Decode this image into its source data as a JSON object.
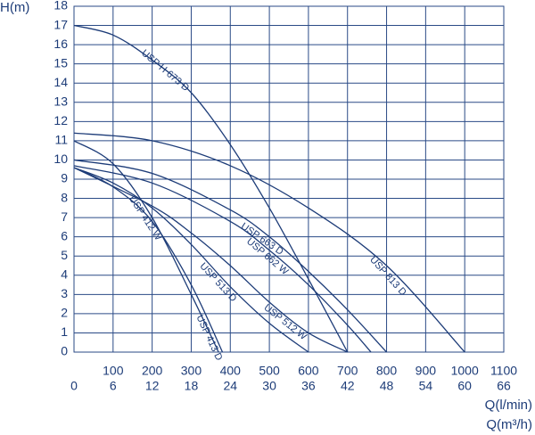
{
  "chart_data": {
    "type": "line",
    "y_label": "H(m)",
    "x_label": "Q(l/min)",
    "x2_label": "Q(m³/h)",
    "xlim": [
      0,
      1100
    ],
    "xticks": [
      100,
      200,
      300,
      400,
      500,
      600,
      700,
      800,
      900,
      1000,
      1100
    ],
    "x2lim": [
      0,
      66
    ],
    "x2ticks": [
      0,
      6,
      12,
      18,
      24,
      30,
      36,
      42,
      48,
      54,
      60,
      66
    ],
    "ylim": [
      0,
      18
    ],
    "yticks": [
      0,
      1,
      2,
      3,
      4,
      5,
      6,
      7,
      8,
      9,
      10,
      11,
      12,
      13,
      14,
      15,
      16,
      17,
      18
    ],
    "grid": true,
    "series": [
      {
        "name": "USP H 673 D",
        "color": "#1d3c78",
        "x": [
          0,
          100,
          200,
          300,
          400,
          500,
          600,
          700
        ],
        "values": [
          17,
          16.5,
          15.2,
          13.5,
          10.8,
          7.5,
          3.8,
          0
        ]
      },
      {
        "name": "USP 813 D",
        "color": "#1d3c78",
        "x": [
          0,
          200,
          400,
          600,
          800,
          1000
        ],
        "values": [
          11.4,
          11,
          9.7,
          7.5,
          4.5,
          0
        ]
      },
      {
        "name": "USP 663 D",
        "color": "#1d3c78",
        "x": [
          0,
          200,
          400,
          500,
          600,
          700,
          800
        ],
        "values": [
          10,
          9.3,
          7.4,
          6,
          4.2,
          2.2,
          0
        ]
      },
      {
        "name": "USP 662 W",
        "color": "#1d3c78",
        "x": [
          0,
          200,
          400,
          500,
          600,
          700,
          760
        ],
        "values": [
          9.7,
          8.8,
          6.8,
          5.3,
          3.5,
          1.4,
          0
        ]
      },
      {
        "name": "USP 512 W",
        "color": "#1d3c78",
        "x": [
          0,
          200,
          300,
          400,
          500,
          600,
          700
        ],
        "values": [
          9.6,
          7.6,
          6.2,
          4.5,
          2.6,
          1,
          0
        ]
      },
      {
        "name": "USP 513 D",
        "color": "#1d3c78",
        "x": [
          0,
          100,
          200,
          300,
          400,
          500,
          600
        ],
        "values": [
          9.6,
          8.8,
          7.5,
          5.6,
          3.4,
          1.5,
          0
        ]
      },
      {
        "name": "USP 413 D",
        "color": "#1d3c78",
        "x": [
          0,
          100,
          200,
          300,
          380
        ],
        "values": [
          9.6,
          8.6,
          6.8,
          3.5,
          0
        ]
      },
      {
        "name": "USP 412 W",
        "color": "#1d3c78",
        "x": [
          0,
          100,
          200,
          300,
          370
        ],
        "values": [
          11,
          9.8,
          7,
          3,
          0
        ]
      }
    ]
  }
}
